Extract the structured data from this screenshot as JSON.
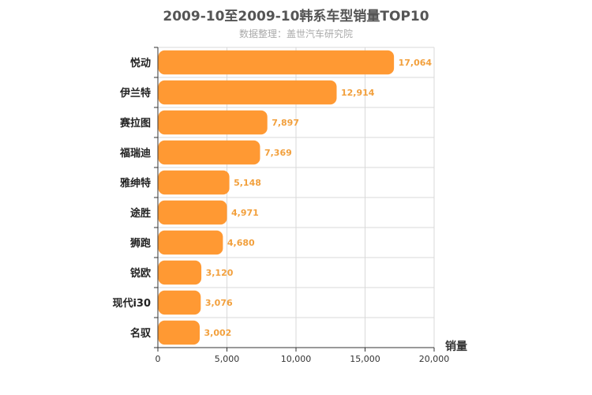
{
  "chart_data": {
    "type": "bar",
    "orientation": "horizontal",
    "title": "2009-10至2009-10韩系车型销量TOP10",
    "subtitle": "数据整理：盖世汽车研究院",
    "categories": [
      "悦动",
      "伊兰特",
      "赛拉图",
      "福瑞迪",
      "雅绅特",
      "途胜",
      "狮跑",
      "锐欧",
      "现代i30",
      "名驭"
    ],
    "values": [
      17064,
      12914,
      7897,
      7369,
      5148,
      4971,
      4680,
      3120,
      3076,
      3002
    ],
    "value_labels": [
      "17,064",
      "12,914",
      "7,897",
      "7,369",
      "5,148",
      "4,971",
      "4,680",
      "3,120",
      "3,076",
      "3,002"
    ],
    "xlabel": "销量",
    "xlim": [
      0,
      20000
    ],
    "xticks": [
      0,
      5000,
      10000,
      15000,
      20000
    ],
    "xtick_labels": [
      "0",
      "5,000",
      "10,000",
      "15,000",
      "20,000"
    ],
    "grid": true,
    "bar_color": "#FF9933",
    "label_color": "#F2A03D"
  }
}
